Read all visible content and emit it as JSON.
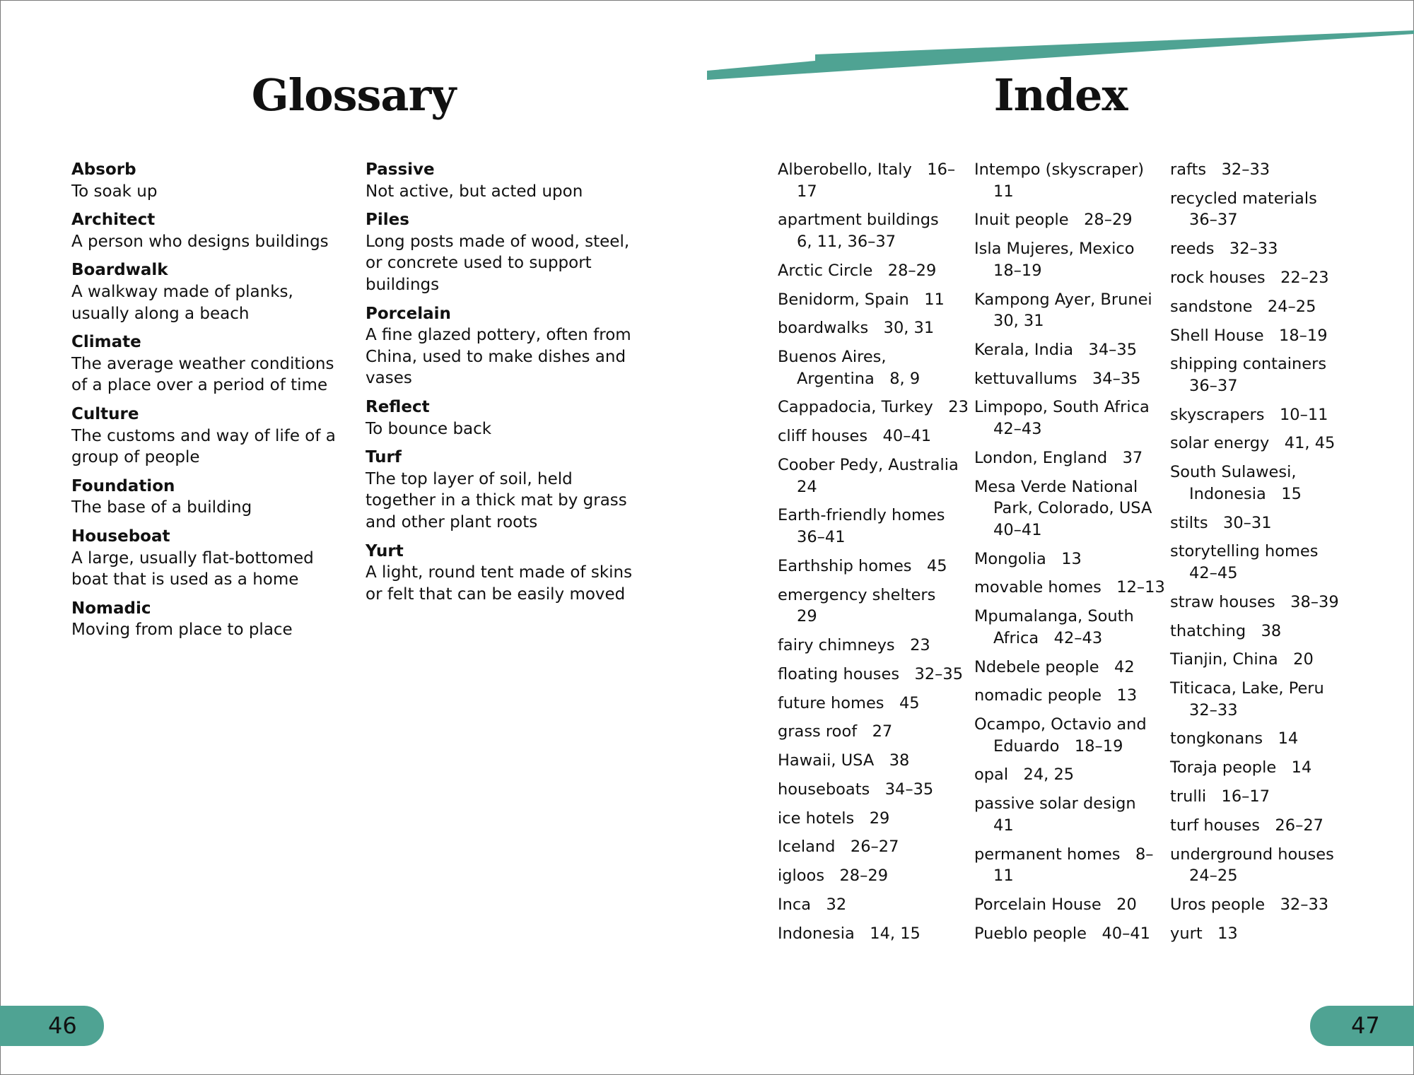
{
  "accent_color": "#4fa393",
  "glossary": {
    "title": "Glossary",
    "columns": [
      [
        {
          "term": "Absorb",
          "definition": "To soak up"
        },
        {
          "term": "Architect",
          "definition": "A person who designs buildings"
        },
        {
          "term": "Boardwalk",
          "definition": "A walkway made of planks, usually along a beach"
        },
        {
          "term": "Climate",
          "definition": "The average weather conditions of a place over a period of time"
        },
        {
          "term": "Culture",
          "definition": "The customs and way of life of a group of people"
        },
        {
          "term": "Foundation",
          "definition": "The base of a building"
        },
        {
          "term": "Houseboat",
          "definition": "A large, usually flat-bottomed boat that is used as a home"
        },
        {
          "term": "Nomadic",
          "definition": "Moving from place to place"
        }
      ],
      [
        {
          "term": "Passive",
          "definition": "Not active, but acted upon"
        },
        {
          "term": "Piles",
          "definition": "Long posts made of wood, steel, or concrete used to support buildings"
        },
        {
          "term": "Porcelain",
          "definition": "A fine glazed pottery, often from China, used to make dishes and vases"
        },
        {
          "term": "Reflect",
          "definition": "To bounce back"
        },
        {
          "term": "Turf",
          "definition": "The top layer of soil, held together in a thick mat by grass and other plant roots"
        },
        {
          "term": "Yurt",
          "definition": "A light, round tent made of skins or felt that can be easily moved"
        }
      ]
    ]
  },
  "index": {
    "title": "Index",
    "columns": [
      [
        "Alberobello, Italy   16–17",
        "apartment buildings   6, 11, 36–37",
        "Arctic Circle   28–29",
        "Benidorm, Spain   11",
        "boardwalks   30, 31",
        "Buenos Aires, Argentina   8, 9",
        "Cappadocia, Turkey   23",
        "cliff houses   40–41",
        "Coober Pedy, Australia   24",
        "Earth-friendly homes   36–41",
        "Earthship homes   45",
        "emergency shelters   29",
        "fairy chimneys   23",
        "floating houses   32–35",
        "future homes   45",
        "grass roof   27",
        "Hawaii, USA   38",
        "houseboats   34–35",
        "ice hotels   29",
        "Iceland   26–27",
        "igloos   28–29",
        "Inca   32",
        "Indonesia   14, 15"
      ],
      [
        "Intempo (skyscraper)   11",
        "Inuit people   28–29",
        "Isla Mujeres, Mexico   18–19",
        "Kampong Ayer, Brunei   30, 31",
        "Kerala, India   34–35",
        "kettuvallums   34–35",
        "Limpopo, South Africa   42–43",
        "London, England   37",
        "Mesa Verde National Park, Colorado, USA   40–41",
        "Mongolia   13",
        "movable homes   12–13",
        "Mpumalanga, South Africa   42–43",
        "Ndebele people   42",
        "nomadic people   13",
        "Ocampo, Octavio and Eduardo   18–19",
        "opal   24, 25",
        "passive solar design   41",
        "permanent homes   8–11",
        "Porcelain House   20",
        "Pueblo people   40–41"
      ],
      [
        "rafts   32–33",
        "recycled materials   36–37",
        "reeds   32–33",
        "rock houses   22–23",
        "sandstone   24–25",
        "Shell House   18–19",
        "shipping containers   36–37",
        "skyscrapers   10–11",
        "solar energy   41, 45",
        "South Sulawesi, Indonesia   15",
        "stilts   30–31",
        "storytelling homes   42–45",
        "straw houses   38–39",
        "thatching   38",
        "Tianjin, China   20",
        "Titicaca, Lake, Peru   32–33",
        "tongkonans   14",
        "Toraja people   14",
        "trulli   16–17",
        "turf houses   26–27",
        "underground houses   24–25",
        "Uros people   32–33",
        "yurt   13"
      ]
    ]
  },
  "page_numbers": {
    "left": "46",
    "right": "47"
  }
}
